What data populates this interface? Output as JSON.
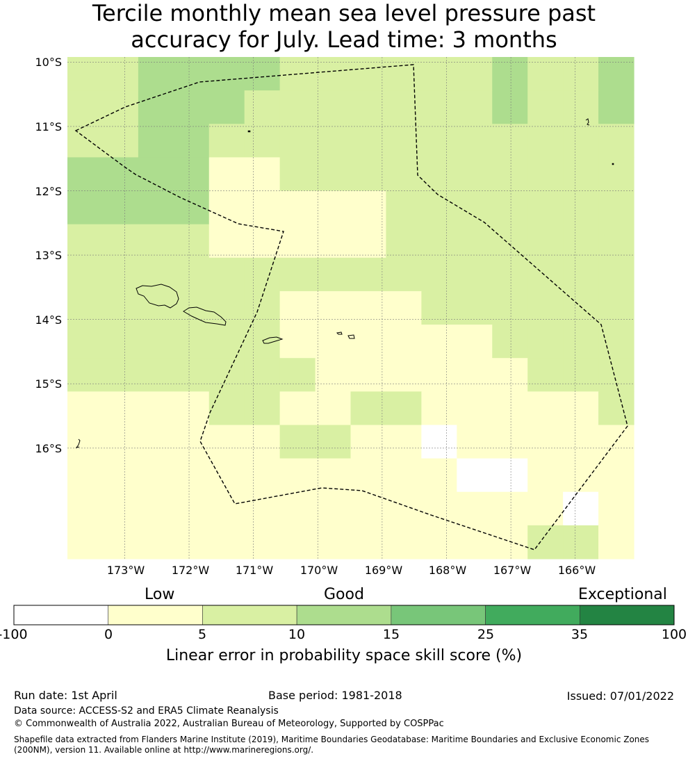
{
  "title_line1": "Tercile monthly mean sea level pressure past",
  "title_line2": "accuracy for July. Lead time: 3 months",
  "lat_labels": [
    "10°S",
    "11°S",
    "12°S",
    "13°S",
    "14°S",
    "15°S",
    "16°S"
  ],
  "lon_labels": [
    "173°W",
    "172°W",
    "171°W",
    "170°W",
    "169°W",
    "168°W",
    "167°W",
    "166°W"
  ],
  "map_extent": {
    "lon_min": -173.89,
    "lon_max": -165.09,
    "lat_north": -9.92,
    "lat_south": -17.72
  },
  "grid": {
    "rows": 14,
    "cols": 16,
    "cells": [
      [
        2,
        2,
        3,
        3,
        3,
        3,
        2,
        2,
        2,
        2,
        2,
        2,
        3,
        2,
        2,
        3
      ],
      [
        2,
        2,
        3,
        3,
        3,
        2,
        2,
        2,
        2,
        2,
        2,
        2,
        3,
        2,
        2,
        3
      ],
      [
        2,
        2,
        3,
        3,
        2,
        2,
        2,
        2,
        2,
        2,
        2,
        2,
        2,
        2,
        2,
        2
      ],
      [
        3,
        3,
        3,
        3,
        1,
        1,
        2,
        2,
        2,
        2,
        2,
        2,
        2,
        2,
        2,
        2
      ],
      [
        3,
        3,
        3,
        3,
        1,
        1,
        1,
        1,
        1,
        2,
        2,
        2,
        2,
        2,
        2,
        2
      ],
      [
        2,
        2,
        2,
        2,
        1,
        1,
        1,
        1,
        1,
        2,
        2,
        2,
        2,
        2,
        2,
        2
      ],
      [
        2,
        2,
        2,
        2,
        2,
        2,
        2,
        2,
        2,
        2,
        2,
        2,
        2,
        2,
        2,
        2
      ],
      [
        2,
        2,
        2,
        2,
        2,
        2,
        1,
        1,
        1,
        1,
        2,
        2,
        2,
        2,
        2,
        2
      ],
      [
        2,
        2,
        2,
        2,
        2,
        2,
        1,
        1,
        1,
        1,
        1,
        1,
        2,
        2,
        2,
        2
      ],
      [
        2,
        2,
        2,
        2,
        2,
        2,
        2,
        1,
        1,
        1,
        1,
        1,
        1,
        2,
        2,
        2
      ],
      [
        1,
        1,
        1,
        1,
        2,
        2,
        1,
        1,
        2,
        2,
        1,
        1,
        1,
        1,
        1,
        2
      ],
      [
        1,
        1,
        1,
        1,
        1,
        1,
        2,
        2,
        1,
        1,
        0,
        1,
        1,
        1,
        1,
        1
      ],
      [
        1,
        1,
        1,
        1,
        1,
        1,
        1,
        1,
        1,
        1,
        1,
        0,
        0,
        1,
        1,
        1
      ],
      [
        1,
        1,
        1,
        1,
        1,
        1,
        1,
        1,
        1,
        1,
        1,
        1,
        1,
        1,
        0,
        1
      ]
    ],
    "final_row_note": "bottom strip",
    "bottom_strip": [
      1,
      1,
      1,
      1,
      1,
      1,
      1,
      1,
      1,
      1,
      1,
      1,
      1,
      2,
      2,
      1
    ]
  },
  "category_labels": [
    "Low",
    "Good",
    "Exceptional"
  ],
  "colorbar": {
    "ticks": [
      "-100",
      "0",
      "5",
      "10",
      "15",
      "25",
      "35",
      "100"
    ],
    "colors": [
      "#ffffff",
      "#ffffcc",
      "#d9f0a3",
      "#addd8e",
      "#78c679",
      "#41ab5d",
      "#238443"
    ],
    "title": "Linear error in probability space skill score (%)"
  },
  "boundary_color": "#000000",
  "footer": {
    "run_date": "Run date: 1st April",
    "base_period": "Base period: 1981-2018",
    "issued": "Issued: 07/01/2022",
    "data_source": "Data source: ACCESS-S2 and ERA5 Climate Reanalysis",
    "copyright": "© Commonwealth of Australia 2022, Australian Bureau of Meteorology, Supported by COSPPac",
    "shapefile_line1": "Shapefile data extracted from Flanders Marine Institute (2019), Maritime Boundaries Geodatabase: Maritime Boundaries and Exclusive Economic Zones",
    "shapefile_line2": "(200NM), version 11. Available online at http://www.marineregions.org/."
  }
}
